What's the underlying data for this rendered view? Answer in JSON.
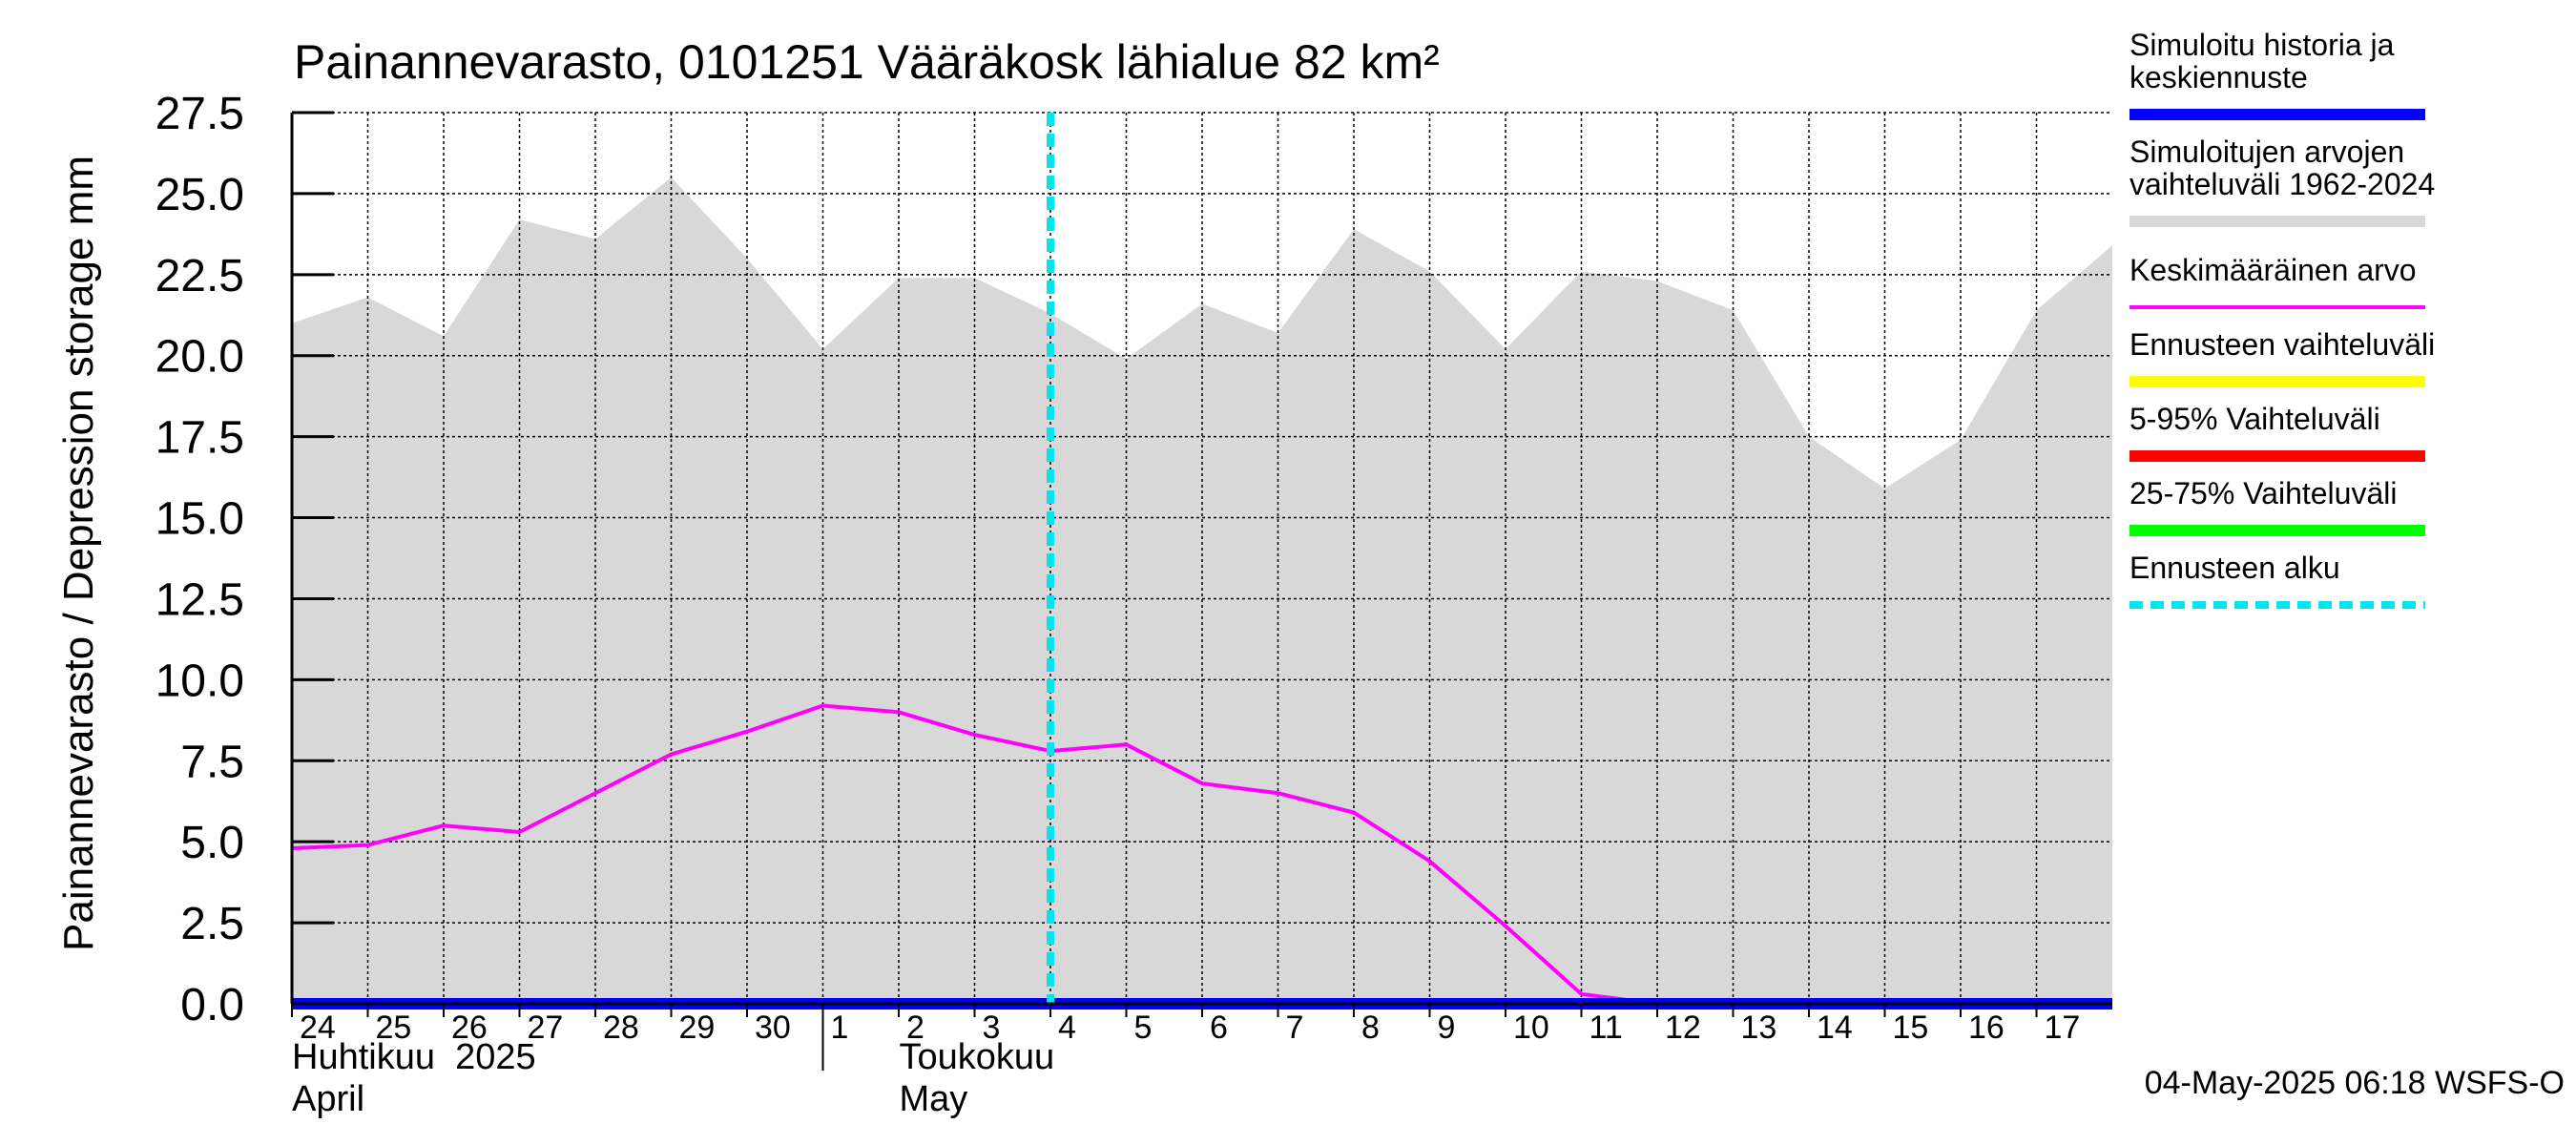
{
  "chart_data": {
    "type": "area",
    "title": "Painannevarasto, 0101251 Vääräkosk lähialue 82 km²",
    "ylabel": "Painannevarasto / Depression storage    mm",
    "xlabel": "",
    "ylim": [
      0,
      27.5
    ],
    "grid": true,
    "yticks": [
      0.0,
      2.5,
      5.0,
      7.5,
      10.0,
      12.5,
      15.0,
      17.5,
      20.0,
      22.5,
      25.0,
      27.5
    ],
    "ytick_labels": [
      "0.0",
      "2.5",
      "5.0",
      "7.5",
      "10.0",
      "12.5",
      "15.0",
      "17.5",
      "20.0",
      "22.5",
      "25.0",
      "27.5"
    ],
    "day_labels": [
      "24",
      "25",
      "26",
      "27",
      "28",
      "29",
      "30",
      "1",
      "2",
      "3",
      "4",
      "5",
      "6",
      "7",
      "8",
      "9",
      "10",
      "11",
      "12",
      "13",
      "14",
      "15",
      "16",
      "17"
    ],
    "month_labels": [
      {
        "fi": "Huhtikuu  2025",
        "en": "April",
        "start_day_index": 0
      },
      {
        "fi": "Toukokuu",
        "en": "May",
        "start_day_index": 7
      }
    ],
    "x_start": 0,
    "x_end": 24,
    "forecast_start": 10,
    "series": [
      {
        "name": "Simuloitujen arvojen vaihteluväli 1962-2024",
        "kind": "band",
        "x": [
          0,
          1,
          2,
          3,
          4,
          5,
          6,
          7,
          8,
          9,
          10,
          11,
          12,
          13,
          14,
          15,
          16,
          17,
          18,
          19,
          20,
          21,
          22,
          23,
          24
        ],
        "upper": [
          21.0,
          21.8,
          20.6,
          24.2,
          23.6,
          25.5,
          23.0,
          20.2,
          22.4,
          22.4,
          21.3,
          19.9,
          21.6,
          20.7,
          23.9,
          22.6,
          20.2,
          22.6,
          22.3,
          21.4,
          17.5,
          15.9,
          17.4,
          21.4,
          23.4
        ],
        "lower": [
          0,
          0,
          0,
          0,
          0,
          0,
          0,
          0,
          0,
          0,
          0,
          0,
          0,
          0,
          0,
          0,
          0,
          0,
          0,
          0,
          0,
          0,
          0,
          0,
          0
        ]
      },
      {
        "name": "Keskimääräinen arvo",
        "kind": "line",
        "x": [
          0,
          1,
          2,
          3,
          4,
          5,
          6,
          7,
          8,
          9,
          10,
          11,
          12,
          13,
          14,
          15,
          16,
          17,
          18,
          19,
          20,
          21,
          22,
          23,
          24
        ],
        "values": [
          4.8,
          4.9,
          5.5,
          5.3,
          6.5,
          7.7,
          8.4,
          9.2,
          9.0,
          8.3,
          7.8,
          8.0,
          6.8,
          6.5,
          5.9,
          4.4,
          2.4,
          0.3,
          0.0,
          0.0,
          0.0,
          0.0,
          0.0,
          0.0,
          0.0
        ]
      },
      {
        "name": "Simuloitu historia ja keskiennuste",
        "kind": "line",
        "x": [
          0,
          24
        ],
        "values": [
          0.0,
          0.0
        ]
      }
    ],
    "legend": {
      "placement": "right",
      "items": [
        {
          "label": "Simuloitu historia ja keskiennuste",
          "color": "#0000ff",
          "style": "solid"
        },
        {
          "label": "Simuloitujen arvojen vaihteluväli 1962-2024",
          "color": "#d8d8d8",
          "style": "solid"
        },
        {
          "label": "Keskimääräinen arvo",
          "color": "#ff00ff",
          "style": "solid"
        },
        {
          "label": "Ennusteen vaihteluväli",
          "color": "#ffff00",
          "style": "solid"
        },
        {
          "label": "5-95% Vaihteluväli",
          "color": "#ff0000",
          "style": "solid"
        },
        {
          "label": "25-75% Vaihteluväli",
          "color": "#00ff00",
          "style": "solid"
        },
        {
          "label": "Ennusteen alku",
          "color": "#00e5ee",
          "style": "dashed"
        }
      ]
    },
    "footer": "04-May-2025 06:18 WSFS-O",
    "colors": {
      "band": "#d8d8d8",
      "mean": "#ff00ff",
      "history": "#0000ff",
      "forecast_line": "#00e5ee",
      "grid": "#000000"
    }
  }
}
